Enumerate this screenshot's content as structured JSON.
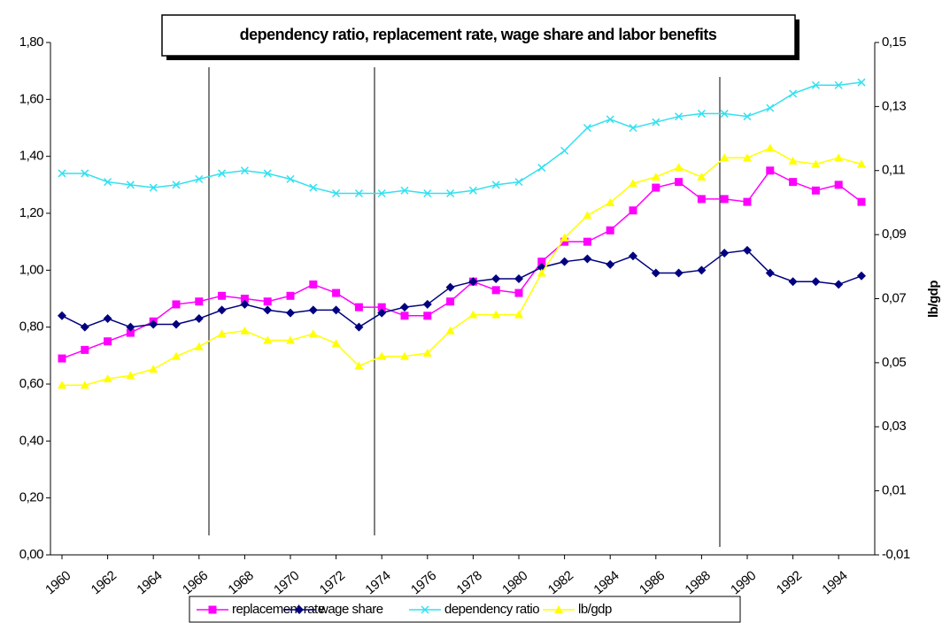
{
  "chart_data": {
    "type": "line",
    "title": "dependency ratio, replacement rate, wage share and labor benefits",
    "y2_label": "lb/gdp",
    "categories": [
      "1960",
      null,
      "1962",
      null,
      "1964",
      null,
      "1966",
      null,
      "1968",
      null,
      "1970",
      null,
      "1972",
      null,
      "1974",
      null,
      "1976",
      null,
      "1978",
      null,
      "1980",
      null,
      "1982",
      null,
      "1984",
      null,
      "1986",
      null,
      "1988",
      null,
      "1990",
      null,
      "1992",
      null,
      "1994",
      null
    ],
    "ylim": [
      0,
      1.8
    ],
    "yticks": [
      {
        "value": 0,
        "label": "0,00"
      },
      {
        "value": 0.2,
        "label": "0,20"
      },
      {
        "value": 0.4,
        "label": "0,40"
      },
      {
        "value": 0.6,
        "label": "0,60"
      },
      {
        "value": 0.8,
        "label": "0,80"
      },
      {
        "value": 1.0,
        "label": "1,00"
      },
      {
        "value": 1.2,
        "label": "1,20"
      },
      {
        "value": 1.4,
        "label": "1,40"
      },
      {
        "value": 1.6,
        "label": "1,60"
      },
      {
        "value": 1.8,
        "label": "1,80"
      }
    ],
    "y2lim": [
      -0.01,
      0.15
    ],
    "y2ticks": [
      {
        "value": -0.01,
        "label": "-0,01"
      },
      {
        "value": 0.01,
        "label": "0,01"
      },
      {
        "value": 0.03,
        "label": "0,03"
      },
      {
        "value": 0.05,
        "label": "0,05"
      },
      {
        "value": 0.07,
        "label": "0,07"
      },
      {
        "value": 0.09,
        "label": "0,09"
      },
      {
        "value": 0.11,
        "label": "0,11"
      },
      {
        "value": 0.13,
        "label": "0,13"
      },
      {
        "value": 0.15,
        "label": "0,15"
      }
    ],
    "grid": false,
    "legend": "bottom",
    "series": [
      {
        "name": "replacement rate",
        "color": "#ff00ff",
        "marker": "square",
        "values": [
          0.69,
          0.72,
          0.75,
          0.78,
          0.82,
          0.88,
          0.89,
          0.91,
          0.9,
          0.89,
          0.91,
          0.95,
          0.92,
          0.87,
          0.87,
          0.84,
          0.84,
          0.89,
          0.96,
          0.93,
          0.92,
          1.03,
          1.1,
          1.1,
          1.14,
          1.21,
          1.29,
          1.31,
          1.25,
          1.25,
          1.24,
          1.35,
          1.31,
          1.28,
          1.3,
          1.24
        ]
      },
      {
        "name": "wage share",
        "color": "#000080",
        "marker": "diamond",
        "values": [
          0.84,
          0.8,
          0.83,
          0.8,
          0.81,
          0.81,
          0.83,
          0.86,
          0.88,
          0.86,
          0.85,
          0.86,
          0.86,
          0.8,
          0.85,
          0.87,
          0.88,
          0.94,
          0.96,
          0.97,
          0.97,
          1.01,
          1.03,
          1.04,
          1.02,
          1.05,
          0.99,
          0.99,
          1.0,
          1.06,
          1.07,
          0.99,
          0.96,
          0.96,
          0.95,
          0.98
        ]
      },
      {
        "name": "dependency ratio",
        "color": "#33e0f0",
        "marker": "x",
        "values": [
          1.34,
          1.34,
          1.31,
          1.3,
          1.29,
          1.3,
          1.32,
          1.34,
          1.35,
          1.34,
          1.32,
          1.29,
          1.27,
          1.27,
          1.27,
          1.28,
          1.27,
          1.27,
          1.28,
          1.3,
          1.31,
          1.36,
          1.42,
          1.5,
          1.53,
          1.5,
          1.52,
          1.54,
          1.55,
          1.55,
          1.54,
          1.57,
          1.62,
          1.65,
          1.65,
          1.66
        ]
      },
      {
        "name": "lb/gdp",
        "color": "#ffff00",
        "marker": "triangle",
        "axis": "y2",
        "values": [
          0.043,
          0.043,
          0.045,
          0.046,
          0.048,
          0.052,
          0.055,
          0.059,
          0.06,
          0.057,
          0.057,
          0.059,
          0.056,
          0.049,
          0.052,
          0.052,
          0.053,
          0.06,
          0.065,
          0.065,
          0.065,
          0.078,
          0.089,
          0.096,
          0.1,
          0.106,
          0.108,
          0.111,
          0.108,
          0.114,
          0.114,
          0.117,
          0.113,
          0.112,
          0.114,
          0.112
        ]
      }
    ]
  }
}
